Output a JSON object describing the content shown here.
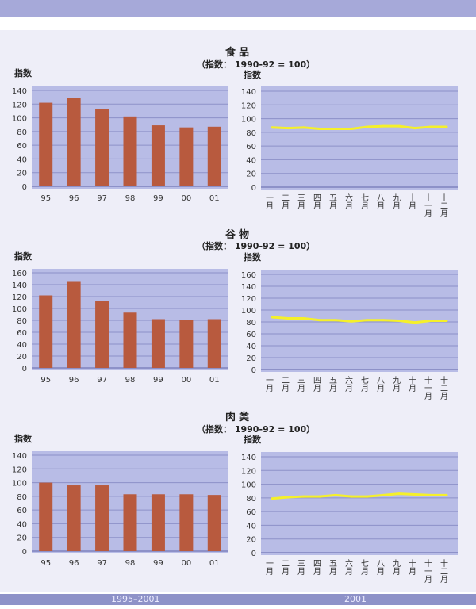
{
  "footer": {
    "left": "1995–2001",
    "right": "2001"
  },
  "sections": [
    {
      "title": "食品",
      "subtitle": "（指数：  1990-92 = 100）"
    },
    {
      "title": "谷物",
      "subtitle": "（指数：  1990-92 = 100）"
    },
    {
      "title": "肉类",
      "subtitle": "（指数：  1990-92 = 100）"
    }
  ],
  "colors": {
    "bar": "#b85a3e",
    "line": "#f5f02a",
    "plot_bg": "#b8bce6",
    "grid": "#8d91c8"
  },
  "chart_data": [
    {
      "id": "food-annual",
      "type": "bar",
      "ylabel": "指数",
      "categories": [
        "95",
        "96",
        "97",
        "98",
        "99",
        "00",
        "01"
      ],
      "values": [
        122,
        129,
        113,
        102,
        89,
        86,
        87
      ],
      "ylim": [
        0,
        140
      ],
      "yticks": [
        0,
        20,
        40,
        60,
        80,
        100,
        120,
        140
      ],
      "grid": true
    },
    {
      "id": "food-monthly",
      "type": "line",
      "ylabel": "指数",
      "categories": [
        "一月",
        "二月",
        "三月",
        "四月",
        "五月",
        "六月",
        "七月",
        "八月",
        "九月",
        "十月",
        "十一月",
        "十二月"
      ],
      "values": [
        87,
        86,
        87,
        85,
        85,
        85,
        88,
        89,
        89,
        86,
        88,
        88
      ],
      "ylim": [
        0,
        140
      ],
      "yticks": [
        0,
        20,
        40,
        60,
        80,
        100,
        120,
        140
      ],
      "grid": true
    },
    {
      "id": "grain-annual",
      "type": "bar",
      "ylabel": "指数",
      "categories": [
        "95",
        "96",
        "97",
        "98",
        "99",
        "00",
        "01"
      ],
      "values": [
        122,
        146,
        113,
        93,
        82,
        81,
        82
      ],
      "ylim": [
        0,
        160
      ],
      "yticks": [
        0,
        20,
        40,
        60,
        80,
        100,
        120,
        140,
        160
      ],
      "grid": true
    },
    {
      "id": "grain-monthly",
      "type": "line",
      "ylabel": "指数",
      "categories": [
        "一月",
        "二月",
        "三月",
        "四月",
        "五月",
        "六月",
        "七月",
        "八月",
        "九月",
        "十月",
        "十一月",
        "十二月"
      ],
      "values": [
        88,
        86,
        86,
        83,
        83,
        81,
        83,
        83,
        82,
        79,
        82,
        82
      ],
      "ylim": [
        0,
        160
      ],
      "yticks": [
        0,
        20,
        40,
        60,
        80,
        100,
        120,
        140,
        160
      ],
      "grid": true
    },
    {
      "id": "meat-annual",
      "type": "bar",
      "ylabel": "指数",
      "categories": [
        "95",
        "96",
        "97",
        "98",
        "99",
        "00",
        "01"
      ],
      "values": [
        100,
        96,
        96,
        83,
        83,
        83,
        82
      ],
      "ylim": [
        0,
        140
      ],
      "yticks": [
        0,
        20,
        40,
        60,
        80,
        100,
        120,
        140
      ],
      "grid": true
    },
    {
      "id": "meat-monthly",
      "type": "line",
      "ylabel": "指数",
      "categories": [
        "一月",
        "二月",
        "三月",
        "四月",
        "五月",
        "六月",
        "七月",
        "八月",
        "九月",
        "十月",
        "十一月",
        "十二月"
      ],
      "values": [
        79,
        81,
        82,
        82,
        84,
        82,
        82,
        84,
        86,
        85,
        84,
        84
      ],
      "ylim": [
        0,
        140
      ],
      "yticks": [
        0,
        20,
        40,
        60,
        80,
        100,
        120,
        140
      ],
      "grid": true
    }
  ]
}
